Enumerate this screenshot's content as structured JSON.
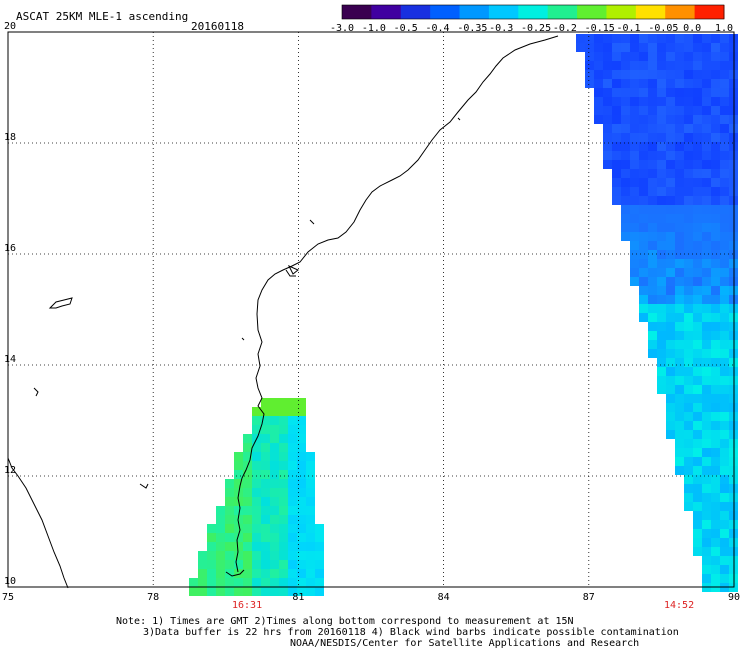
{
  "header": {
    "title": "ASCAT 25KM MLE-1 ascending",
    "date": "20160118"
  },
  "colorbar": {
    "labels": [
      "-3.0",
      "-1.0",
      "-0.5",
      "-0.4",
      "-0.35",
      "-0.3",
      "-0.25",
      "-0.2",
      "-0.15",
      "-0.1",
      "-0.05",
      "0.0",
      "1.0"
    ],
    "colors": [
      "#3a0050",
      "#4000a0",
      "#1830e0",
      "#0060ff",
      "#0098ff",
      "#00c8ff",
      "#00f0e0",
      "#20f090",
      "#60f030",
      "#b0f000",
      "#ffe000",
      "#ff9000",
      "#ff2000"
    ]
  },
  "axes": {
    "x_ticks": [
      "75",
      "78",
      "81",
      "84",
      "87",
      "90"
    ],
    "y_ticks": [
      "20",
      "18",
      "16",
      "14",
      "12",
      "10"
    ]
  },
  "swaths": {
    "left_time": "16:31",
    "right_time": "14:52"
  },
  "notes": {
    "line1": "Note: 1) Times are GMT 2)Times along bottom correspond to measurement at 15N",
    "line2": "3)Data buffer is 22 hrs from 20160118 4) Black wind barbs indicate possible contamination",
    "line3": "NOAA/NESDIS/Center for Satellite Applications and Research"
  }
}
